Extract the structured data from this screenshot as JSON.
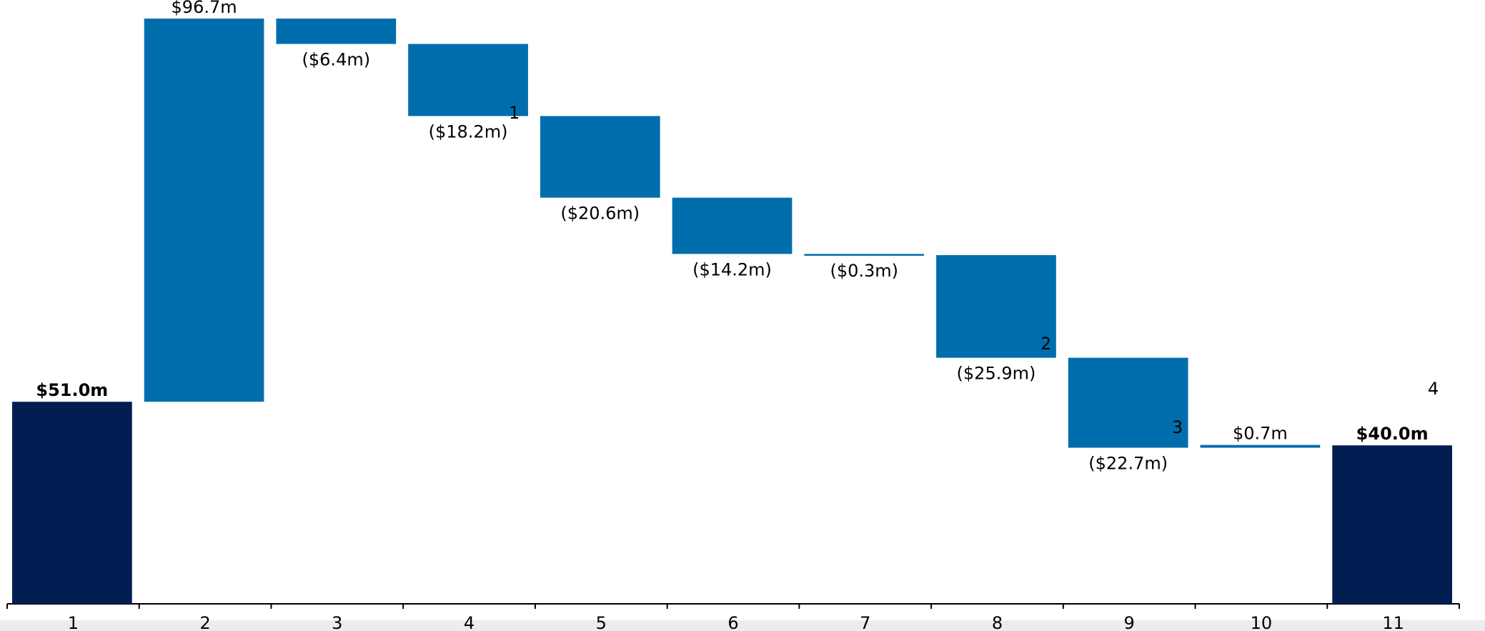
{
  "chart_data": {
    "type": "waterfall",
    "categories": [
      "1",
      "2",
      "3",
      "4",
      "5",
      "6",
      "7",
      "8",
      "9",
      "10",
      "11"
    ],
    "values": [
      51.0,
      96.7,
      -6.4,
      -18.2,
      -20.6,
      -14.2,
      -0.3,
      -25.9,
      -22.7,
      0.7,
      40.0
    ],
    "value_labels": [
      "$51.0m",
      "$96.7m",
      "($6.4m)",
      "($18.2m)",
      "($20.6m)",
      "($14.2m)",
      "($0.3m)",
      "($25.9m)",
      "($22.7m)",
      "$0.7m",
      "$40.0m"
    ],
    "measures": [
      "total",
      "relative",
      "relative",
      "relative",
      "relative",
      "relative",
      "relative",
      "relative",
      "relative",
      "relative",
      "total"
    ],
    "total_color": "#011e53",
    "delta_color": "#006eac",
    "footnotes": [
      "1",
      "2",
      "3",
      "4"
    ]
  }
}
